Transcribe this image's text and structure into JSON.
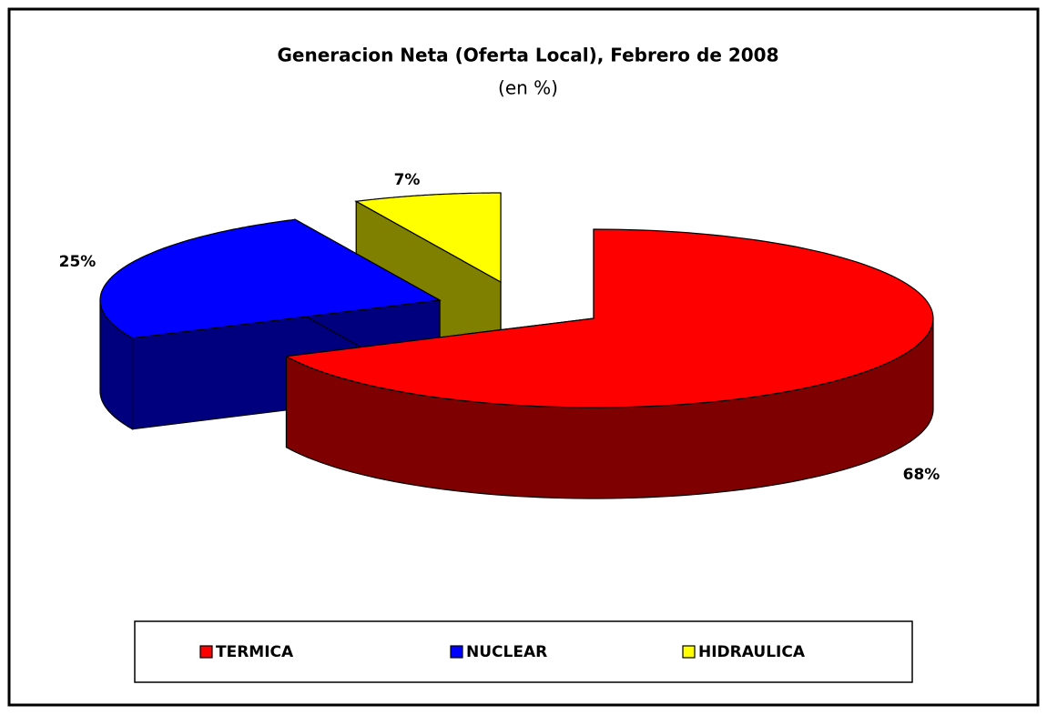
{
  "chart_data": {
    "type": "pie",
    "title": "Generacion Neta (Oferta Local), Febrero de 2008",
    "subtitle": "(en %)",
    "categories": [
      "TERMICA",
      "NUCLEAR",
      "HIDRAULICA"
    ],
    "values": [
      68,
      25,
      7
    ],
    "value_labels": [
      "68%",
      "25%",
      "7%"
    ],
    "colors": [
      "#ff0000",
      "#0000ff",
      "#ffff00"
    ],
    "legend": "bottom"
  }
}
